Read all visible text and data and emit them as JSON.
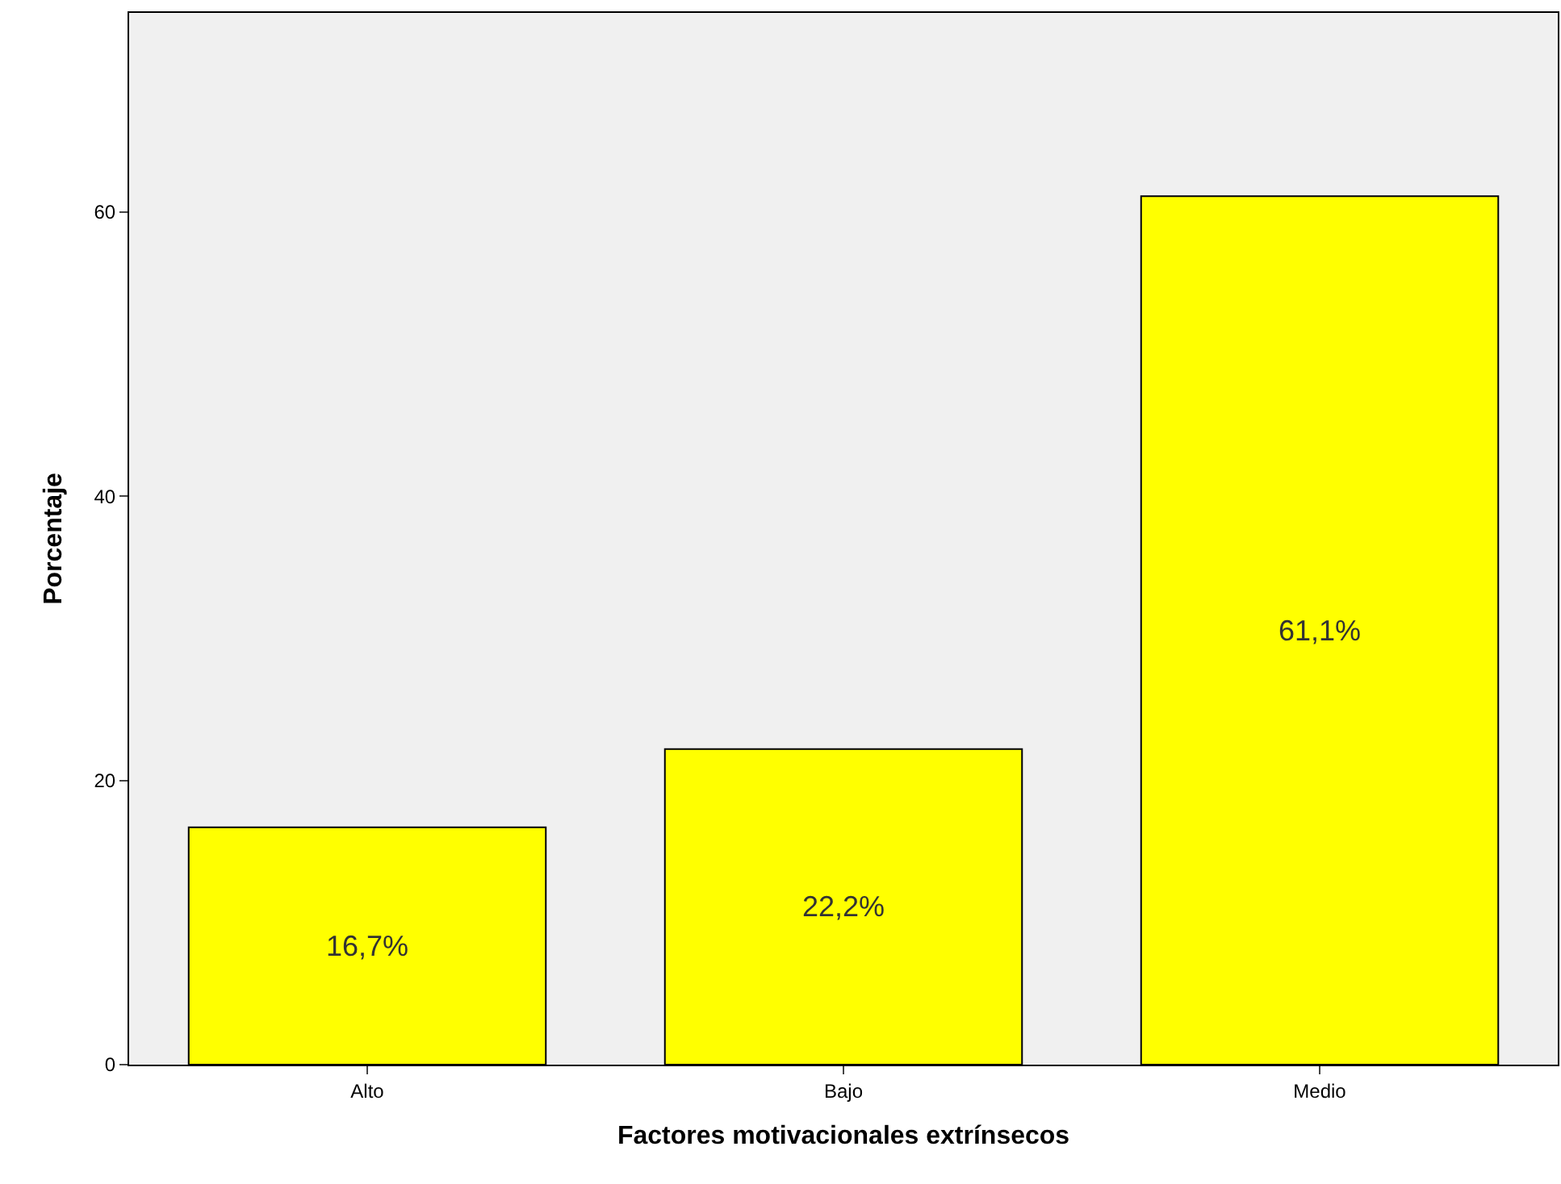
{
  "chart_data": {
    "type": "bar",
    "xlabel": "Factores motivacionales extrínsecos",
    "ylabel": "Porcentaje",
    "categories": [
      "Alto",
      "Bajo",
      "Medio"
    ],
    "values": [
      16.7,
      22.2,
      61.1
    ],
    "value_labels": [
      "16,7%",
      "22,2%",
      "61,1%"
    ],
    "color": "#ffff00",
    "ylim": [
      0,
      74
    ],
    "yticks": [
      0,
      20,
      40,
      60
    ],
    "grid": false,
    "legend": false
  }
}
